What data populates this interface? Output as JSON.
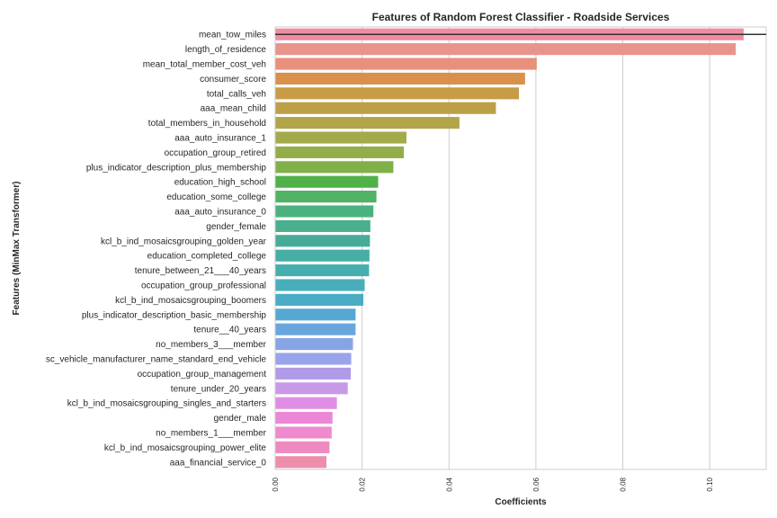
{
  "chart_data": {
    "type": "bar",
    "orientation": "horizontal",
    "title": "Features of Random Forest Classifier - Roadside Services",
    "xlabel": "Coefficients",
    "ylabel": "Features (MinMax Transformer)",
    "xlim": [
      0,
      0.113
    ],
    "grid": "vertical",
    "xticks": [
      "0.00",
      "0.02",
      "0.04",
      "0.06",
      "0.08",
      "0.10"
    ],
    "xtick_values": [
      0.0,
      0.02,
      0.04,
      0.06,
      0.08,
      0.1
    ],
    "reference_line": {
      "value_index": 0,
      "value": 0.113
    },
    "categories": [
      "mean_tow_miles",
      "length_of_residence",
      "mean_total_member_cost_veh",
      "consumer_score",
      "total_calls_veh",
      "aaa_mean_child",
      "total_members_in_household",
      "aaa_auto_insurance_1",
      "occupation_group_retired",
      "plus_indicator_description_plus_membership",
      "education_high_school",
      "education_some_college",
      "aaa_auto_insurance_0",
      "gender_female",
      "kcl_b_ind_mosaicsgrouping_golden_year",
      "education_completed_college",
      "tenure_between_21___40_years",
      "occupation_group_professional",
      "kcl_b_ind_mosaicsgrouping_boomers",
      "plus_indicator_description_basic_membership",
      "tenure__40_years",
      "no_members_3___member",
      "sc_vehicle_manufacturer_name_standard_end_vehicle",
      "occupation_group_management",
      "tenure_under_20_years",
      "kcl_b_ind_mosaicsgrouping_singles_and_starters",
      "gender_male",
      "no_members_1___member",
      "kcl_b_ind_mosaicsgrouping_power_elite",
      "aaa_financial_service_0"
    ],
    "values": [
      0.1078,
      0.106,
      0.0602,
      0.0575,
      0.0561,
      0.0508,
      0.0424,
      0.0302,
      0.0296,
      0.0272,
      0.0237,
      0.0233,
      0.0226,
      0.0219,
      0.0218,
      0.0217,
      0.0216,
      0.0206,
      0.0203,
      0.0185,
      0.0185,
      0.0179,
      0.0175,
      0.0174,
      0.0167,
      0.0142,
      0.0132,
      0.013,
      0.0125,
      0.0118
    ],
    "colors": [
      "#f08ba1",
      "#e8948d",
      "#e8907b",
      "#d8904a",
      "#c89c47",
      "#bd9f47",
      "#b2a549",
      "#a2aa4a",
      "#93ae48",
      "#80b148",
      "#4fb148",
      "#4fb264",
      "#4bb17e",
      "#4aaf8c",
      "#46ac98",
      "#48aea5",
      "#47aeaf",
      "#48aebc",
      "#4aacc4",
      "#56a8d2",
      "#6aa6dc",
      "#87a4e4",
      "#99a4ea",
      "#b09be6",
      "#c999e8",
      "#e08ee4",
      "#ec86d7",
      "#ef8acf",
      "#ef8ac0",
      "#ee8eab"
    ]
  }
}
